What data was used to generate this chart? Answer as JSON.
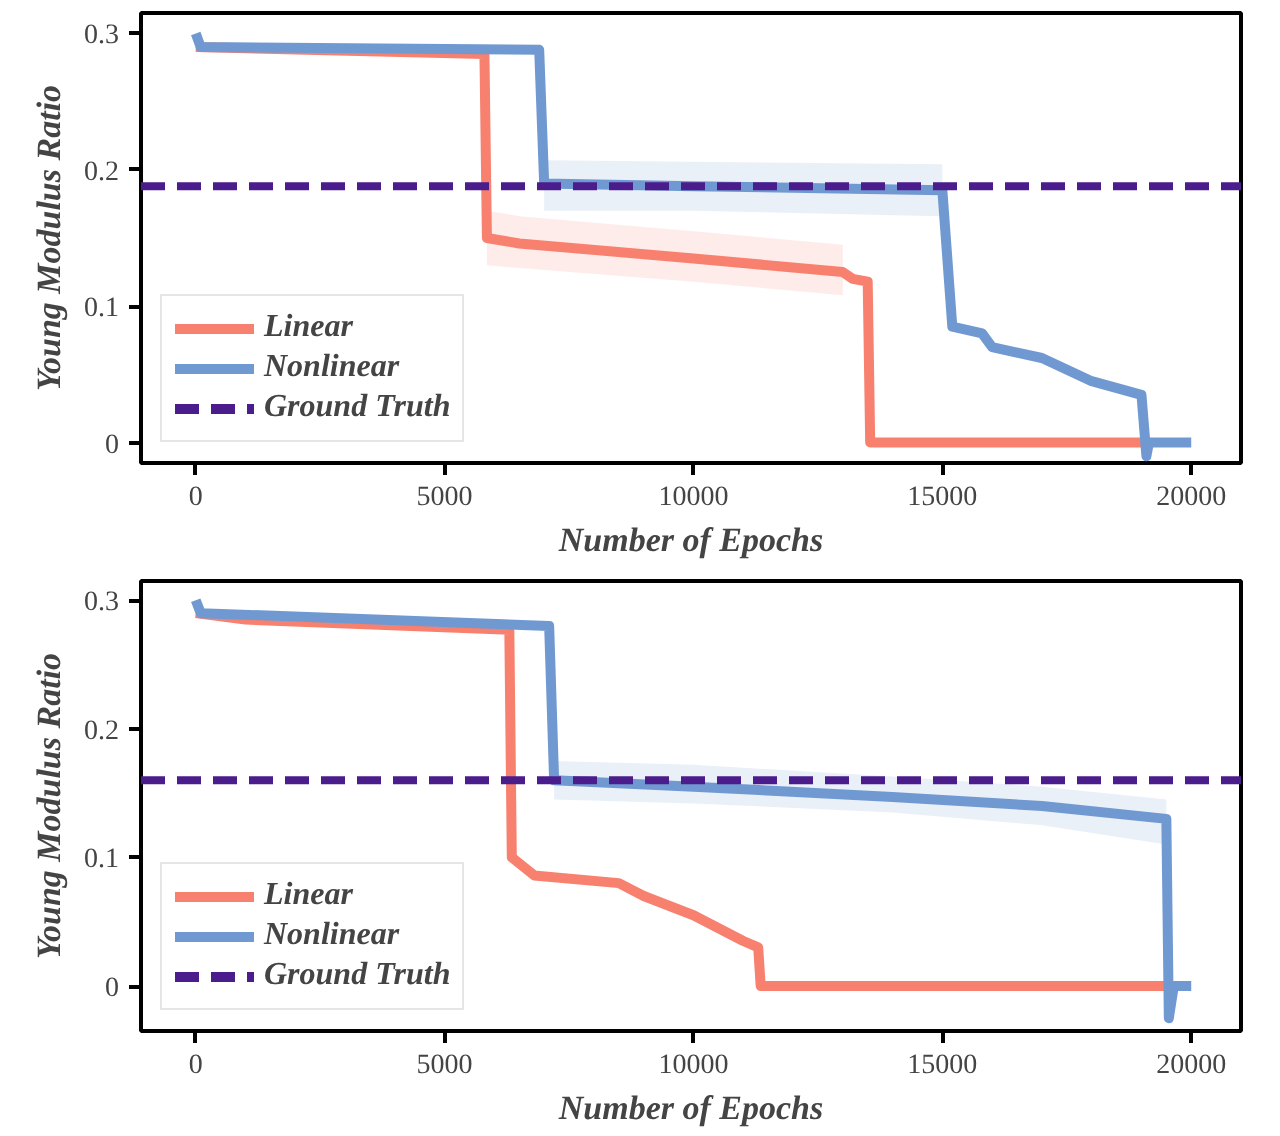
{
  "chart_data": [
    {
      "type": "line",
      "xlabel": "Number of Epochs",
      "ylabel": "Young Modulus Ratio",
      "xlim": [
        -1100,
        21000
      ],
      "ylim": [
        -0.015,
        0.315
      ],
      "xticks": [
        0,
        5000,
        10000,
        15000,
        20000
      ],
      "yticks": [
        {
          "value": 0,
          "label": "0"
        },
        0.1,
        0.2,
        0.3
      ],
      "grid": false,
      "legend": "bottom left",
      "series": [
        {
          "name": "Linear",
          "color": "#f8806f",
          "x": [
            0,
            5800,
            5850,
            6500,
            10000,
            13000,
            13200,
            13500,
            13550,
            19100
          ],
          "values": [
            0.29,
            0.285,
            0.15,
            0.146,
            0.135,
            0.125,
            0.12,
            0.118,
            0,
            0
          ],
          "lower": [
            null,
            null,
            0.13,
            0.128,
            0.118,
            0.108,
            null,
            null,
            null,
            null
          ],
          "upper": [
            null,
            null,
            0.17,
            0.166,
            0.155,
            0.145,
            null,
            null,
            null,
            null
          ]
        },
        {
          "name": "Nonlinear",
          "color": "#7199d1",
          "x": [
            0,
            100,
            6900,
            7000,
            10000,
            15000,
            15200,
            15800,
            16000,
            17000,
            18000,
            19000,
            19100,
            19150,
            20000
          ],
          "values": [
            0.3,
            0.29,
            0.288,
            0.19,
            0.188,
            0.185,
            0.085,
            0.08,
            0.07,
            0.062,
            0.045,
            0.035,
            -0.01,
            0,
            0
          ],
          "lower": [
            null,
            null,
            null,
            0.17,
            0.17,
            0.166,
            null,
            null,
            null,
            null,
            null,
            null,
            null,
            null,
            null
          ],
          "upper": [
            null,
            null,
            null,
            0.207,
            0.206,
            0.204,
            null,
            null,
            null,
            null,
            null,
            null,
            null,
            null,
            null
          ]
        }
      ],
      "ref_lines": [
        {
          "axis": "y",
          "value": 0.188,
          "label": "Ground Truth",
          "color": "#4b1c8c",
          "line_style": "dashed"
        }
      ]
    },
    {
      "type": "line",
      "xlabel": "Number of Epochs",
      "ylabel": "Young Modulus Ratio",
      "xlim": [
        -1100,
        21000
      ],
      "ylim": [
        -0.035,
        0.315
      ],
      "xticks": [
        0,
        5000,
        10000,
        15000,
        20000
      ],
      "yticks": [
        {
          "value": 0,
          "label": "0"
        },
        0.1,
        0.2,
        0.3
      ],
      "grid": false,
      "legend": "bottom left",
      "series": [
        {
          "name": "Linear",
          "color": "#f8806f",
          "x": [
            0,
            1000,
            6300,
            6350,
            6800,
            8500,
            9000,
            10000,
            11000,
            11300,
            11350,
            19500
          ],
          "values": [
            0.29,
            0.285,
            0.277,
            0.1,
            0.086,
            0.08,
            0.07,
            0.055,
            0.035,
            0.03,
            0,
            0
          ]
        },
        {
          "name": "Nonlinear",
          "color": "#7199d1",
          "x": [
            0,
            100,
            7100,
            7200,
            10000,
            14000,
            17000,
            19500,
            19550,
            19650,
            20000
          ],
          "values": [
            0.3,
            0.29,
            0.28,
            0.16,
            0.155,
            0.147,
            0.14,
            0.13,
            -0.025,
            0,
            0
          ],
          "lower": [
            null,
            null,
            null,
            0.145,
            0.142,
            0.135,
            0.125,
            0.11,
            null,
            null,
            null
          ],
          "upper": [
            null,
            null,
            null,
            0.175,
            0.172,
            0.163,
            0.155,
            0.145,
            null,
            null,
            null
          ]
        }
      ],
      "ref_lines": [
        {
          "axis": "y",
          "value": 0.16,
          "label": "Ground Truth",
          "color": "#4b1c8c",
          "line_style": "dashed"
        }
      ]
    }
  ]
}
